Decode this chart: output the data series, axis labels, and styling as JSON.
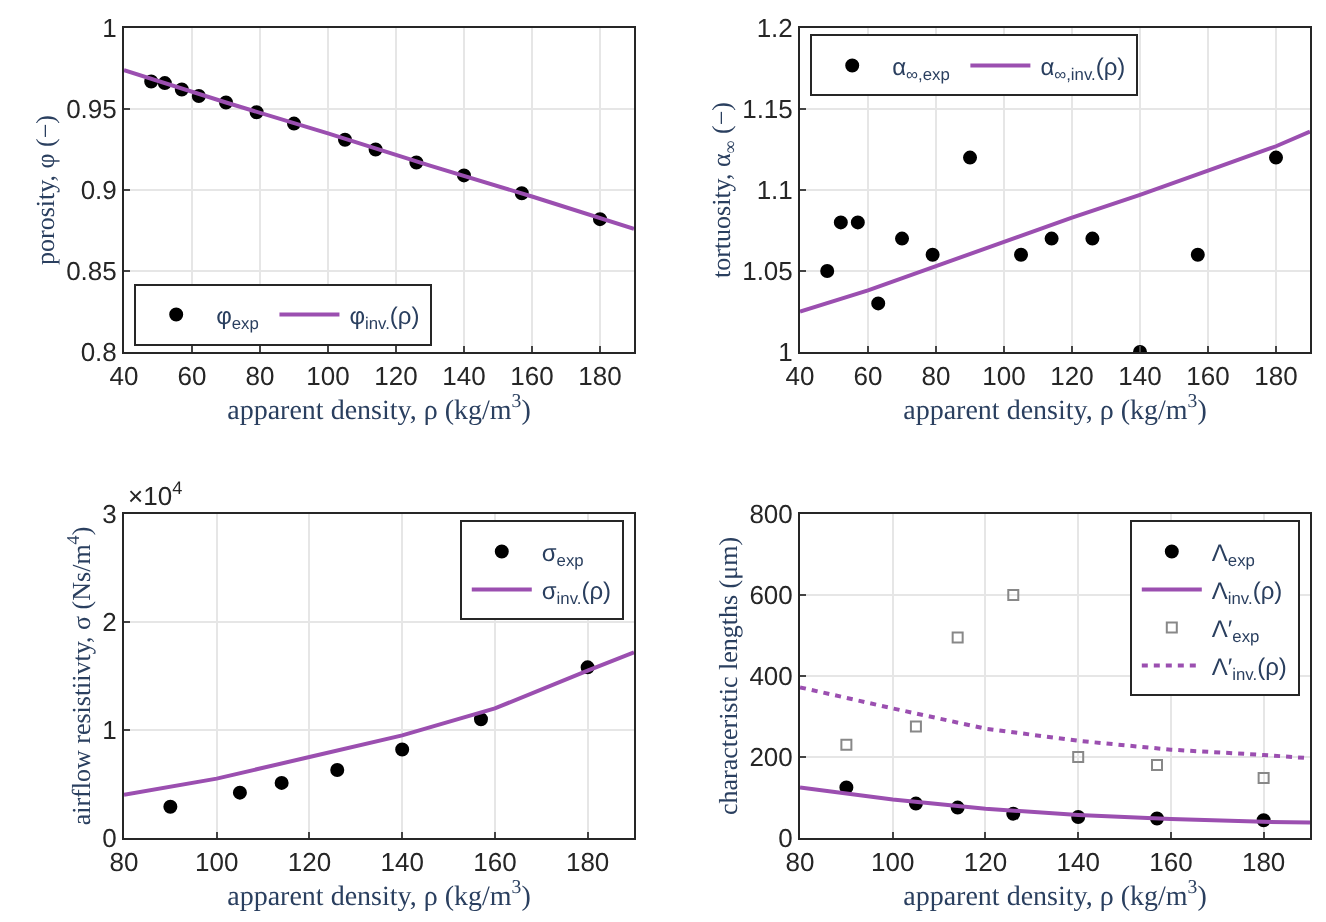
{
  "chart_data": [
    {
      "type": "scatter",
      "xlabel": "apparent density, ρ (kg/m$^{3}$)",
      "ylabel": "porosity, φ (−)",
      "xlim": [
        40,
        190
      ],
      "xticks": [
        40,
        60,
        80,
        100,
        120,
        140,
        160,
        180
      ],
      "ylim": [
        0.8,
        1
      ],
      "yticks": [
        0.8,
        0.85,
        0.9,
        0.95,
        1
      ],
      "grid": true,
      "legend": "bottom left",
      "series": [
        {
          "name": "φ$_{exp}$",
          "color": "#000000",
          "marker": "circle",
          "x": [
            48,
            52,
            57,
            62,
            70,
            79,
            90,
            105,
            114,
            126,
            140,
            157,
            180
          ],
          "values": [
            0.967,
            0.966,
            0.962,
            0.958,
            0.954,
            0.948,
            0.941,
            0.931,
            0.925,
            0.917,
            0.909,
            0.898,
            0.882
          ]
        },
        {
          "name": "φ$_{inv.}$(ρ)",
          "type": "line",
          "color": "#9b4fb0",
          "line_style": "solid",
          "x": [
            40,
            70,
            100,
            130,
            160,
            190
          ],
          "values": [
            0.974,
            0.954,
            0.935,
            0.915,
            0.896,
            0.876
          ]
        }
      ]
    },
    {
      "type": "scatter",
      "xlabel": "apparent density, ρ (kg/m$^{3}$)",
      "ylabel": "tortuosity, α$_{∞}$ (−)",
      "xlim": [
        40,
        190
      ],
      "xticks": [
        40,
        60,
        80,
        100,
        120,
        140,
        160,
        180
      ],
      "ylim": [
        1,
        1.2
      ],
      "yticks": [
        1,
        1.05,
        1.1,
        1.15,
        1.2
      ],
      "grid": true,
      "legend": "top left",
      "series": [
        {
          "name": "α$_{∞,exp}$",
          "color": "#000000",
          "marker": "circle",
          "x": [
            48,
            52,
            57,
            63,
            70,
            79,
            90,
            105,
            114,
            126,
            140,
            157,
            180
          ],
          "values": [
            1.05,
            1.08,
            1.08,
            1.03,
            1.07,
            1.06,
            1.12,
            1.06,
            1.07,
            1.07,
            1.0,
            1.06,
            1.12
          ]
        },
        {
          "name": "α$_{∞,inv.}$(ρ)",
          "type": "line",
          "color": "#9b4fb0",
          "line_style": "solid",
          "x": [
            40,
            60,
            80,
            100,
            120,
            140,
            160,
            180,
            190
          ],
          "values": [
            1.025,
            1.038,
            1.053,
            1.068,
            1.083,
            1.097,
            1.112,
            1.127,
            1.136
          ]
        }
      ]
    },
    {
      "type": "scatter",
      "xlabel": "apparent density, ρ (kg/m$^{3}$)",
      "ylabel": "airflow resistiivty, σ (Ns/m$^{4}$)",
      "annotations": [
        "×10$^{4}$"
      ],
      "xlim": [
        80,
        190
      ],
      "xticks": [
        80,
        100,
        120,
        140,
        160,
        180
      ],
      "ylim": [
        0,
        3
      ],
      "yticks": [
        0,
        1,
        2,
        3
      ],
      "grid": true,
      "legend": "top right",
      "series": [
        {
          "name": "σ$_{exp}$",
          "color": "#000000",
          "marker": "circle",
          "x": [
            90,
            105,
            114,
            126,
            140,
            157,
            180
          ],
          "values": [
            0.29,
            0.42,
            0.51,
            0.63,
            0.82,
            1.1,
            1.58
          ]
        },
        {
          "name": "σ$_{inv.}$(ρ)",
          "type": "line",
          "color": "#9b4fb0",
          "line_style": "solid",
          "x": [
            80,
            100,
            120,
            140,
            160,
            180,
            190
          ],
          "values": [
            0.4,
            0.55,
            0.75,
            0.95,
            1.2,
            1.55,
            1.72
          ]
        }
      ]
    },
    {
      "type": "scatter",
      "xlabel": "apparent density, ρ (kg/m$^{3}$)",
      "ylabel": "characteristic lengths (μm)",
      "xlim": [
        80,
        190
      ],
      "xticks": [
        80,
        100,
        120,
        140,
        160,
        180
      ],
      "ylim": [
        0,
        800
      ],
      "yticks": [
        0,
        200,
        400,
        600,
        800
      ],
      "grid": true,
      "legend": "top right",
      "series": [
        {
          "name": "Λ$_{exp}$",
          "color": "#000000",
          "marker": "circle",
          "x": [
            90,
            105,
            114,
            126,
            140,
            157,
            180
          ],
          "values": [
            125,
            85,
            75,
            60,
            52,
            48,
            44
          ]
        },
        {
          "name": "Λ$_{inv.}$(ρ)",
          "type": "line",
          "color": "#9b4fb0",
          "line_style": "solid",
          "x": [
            80,
            100,
            120,
            140,
            160,
            180,
            190
          ],
          "values": [
            125,
            95,
            72,
            57,
            47,
            40,
            38
          ]
        },
        {
          "name": "Λ′$_{exp}$",
          "color": "#888888",
          "marker": "square",
          "x": [
            90,
            105,
            114,
            126,
            140,
            157,
            180
          ],
          "values": [
            230,
            275,
            495,
            600,
            200,
            180,
            148
          ]
        },
        {
          "name": "Λ′$_{inv.}$(ρ)",
          "type": "line",
          "color": "#9b4fb0",
          "line_style": "dotted",
          "x": [
            80,
            100,
            120,
            140,
            160,
            180,
            190
          ],
          "values": [
            372,
            320,
            270,
            240,
            218,
            205,
            197
          ]
        }
      ]
    }
  ]
}
